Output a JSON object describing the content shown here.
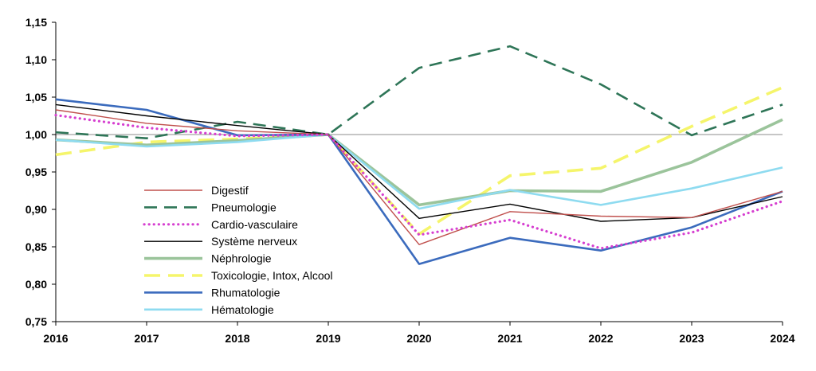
{
  "chart_data": {
    "type": "line",
    "title": "",
    "xlabel": "",
    "ylabel": "",
    "categories": [
      "2016",
      "2017",
      "2018",
      "2019",
      "2020",
      "2021",
      "2022",
      "2023",
      "2024"
    ],
    "ylim": [
      0.75,
      1.15
    ],
    "yticks": [
      0.75,
      0.8,
      0.85,
      0.9,
      0.95,
      1.0,
      1.05,
      1.1,
      1.15
    ],
    "ytick_labels": [
      "0,75",
      "0,80",
      "0,85",
      "0,90",
      "0,95",
      "1,00",
      "1,05",
      "1,10",
      "1,15"
    ],
    "reference_line": 1.0,
    "legend_position": "bottom-left",
    "series": [
      {
        "key": "digestif",
        "name": "Digestif",
        "color": "#c0504d",
        "style": "solid-thin",
        "values": [
          1.033,
          1.015,
          1.005,
          1.0,
          0.853,
          0.897,
          0.891,
          0.889,
          0.924
        ]
      },
      {
        "key": "pneumologie",
        "name": "Pneumologie",
        "color": "#2e7557",
        "style": "dashed",
        "values": [
          1.003,
          0.995,
          1.017,
          1.0,
          1.089,
          1.118,
          1.067,
          0.999,
          1.04
        ]
      },
      {
        "key": "cardio",
        "name": "Cardio-vasculaire",
        "color": "#d63fd0",
        "style": "dotted",
        "values": [
          1.026,
          1.009,
          0.998,
          1.0,
          0.866,
          0.886,
          0.848,
          0.869,
          0.911
        ]
      },
      {
        "key": "nerveux",
        "name": "Système nerveux",
        "color": "#000000",
        "style": "solid-thin",
        "values": [
          1.04,
          1.025,
          1.012,
          1.0,
          0.888,
          0.907,
          0.884,
          0.889,
          0.917
        ]
      },
      {
        "key": "nephrologie",
        "name": "Néphrologie",
        "color": "#9bc49b",
        "style": "solid-thick",
        "values": [
          0.993,
          0.986,
          0.992,
          1.0,
          0.906,
          0.925,
          0.924,
          0.963,
          1.02
        ]
      },
      {
        "key": "toxicologie",
        "name": "Toxicologie, Intox, Alcool",
        "color": "#f5f56b",
        "style": "dashed-thick",
        "values": [
          0.973,
          0.99,
          0.994,
          1.0,
          0.867,
          0.945,
          0.955,
          1.011,
          1.063
        ]
      },
      {
        "key": "rhumatologie",
        "name": "Rhumatologie",
        "color": "#3b6bbd",
        "style": "solid-medium",
        "values": [
          1.047,
          1.033,
          0.999,
          1.0,
          0.827,
          0.862,
          0.845,
          0.876,
          0.924
        ]
      },
      {
        "key": "hematologie",
        "name": "Hématologie",
        "color": "#8edbf0",
        "style": "solid-medium",
        "values": [
          0.993,
          0.984,
          0.99,
          1.0,
          0.901,
          0.926,
          0.906,
          0.928,
          0.956
        ]
      }
    ]
  }
}
